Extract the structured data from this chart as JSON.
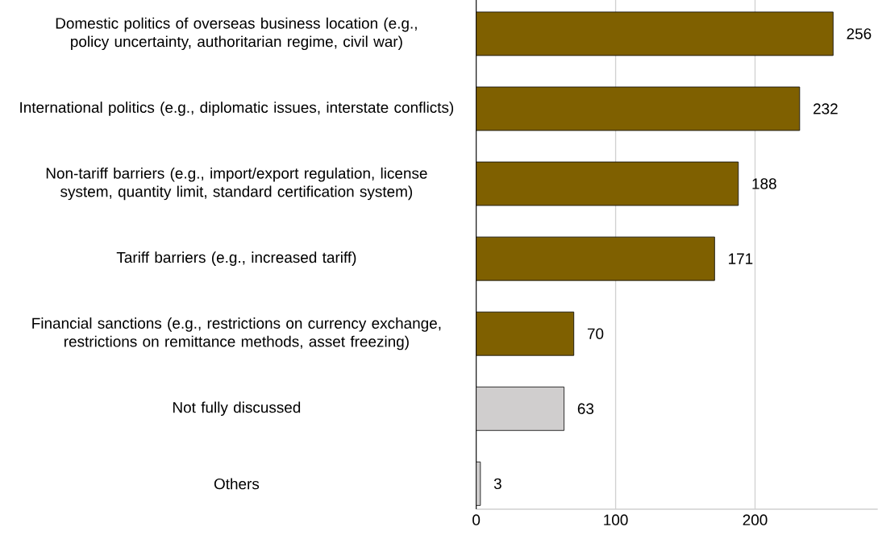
{
  "chart_data": {
    "type": "bar",
    "orientation": "horizontal",
    "categories": [
      "Domestic politics of overseas business location (e.g., policy uncertainty, authoritarian regime, civil war)",
      "International politics (e.g., diplomatic issues, interstate conflicts)",
      "Non-tariff barriers (e.g., import/export regulation, license system, quantity limit, standard certification system)",
      "Tariff barriers (e.g., increased tariff)",
      "Financial sanctions (e.g., restrictions on currency exchange, restrictions on remittance methods, asset freezing)",
      "Not fully discussed",
      "Others"
    ],
    "values": [
      256,
      232,
      188,
      171,
      70,
      63,
      3
    ],
    "colors": [
      "#7f6000",
      "#7f6000",
      "#7f6000",
      "#7f6000",
      "#7f6000",
      "#d0cece",
      "#d0cece"
    ],
    "xlim": [
      0,
      288
    ],
    "xticks": [
      0,
      100,
      200
    ],
    "grid": "x",
    "data_labels": true
  }
}
